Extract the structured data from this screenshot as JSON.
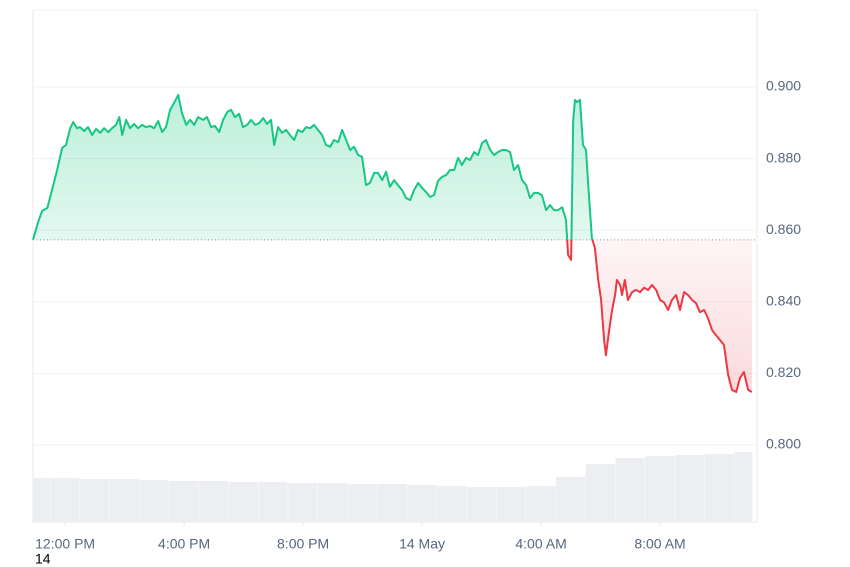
{
  "chart_data": {
    "type": "line",
    "x": [
      -1.08,
      -0.91,
      -0.77,
      -0.6,
      -0.44,
      -0.27,
      -0.1,
      0.03,
      0.17,
      0.27,
      0.4,
      0.5,
      0.64,
      0.77,
      0.91,
      1.04,
      1.18,
      1.31,
      1.45,
      1.58,
      1.71,
      1.82,
      1.92,
      2.05,
      2.18,
      2.32,
      2.45,
      2.59,
      2.72,
      2.86,
      2.99,
      3.13,
      3.26,
      3.39,
      3.53,
      3.66,
      3.8,
      3.93,
      4.07,
      4.2,
      4.34,
      4.47,
      4.64,
      4.77,
      4.91,
      5.04,
      5.18,
      5.31,
      5.45,
      5.58,
      5.71,
      5.85,
      5.98,
      6.12,
      6.25,
      6.39,
      6.52,
      6.66,
      6.79,
      6.92,
      7.03,
      7.16,
      7.29,
      7.43,
      7.56,
      7.7,
      7.83,
      7.97,
      8.1,
      8.24,
      8.37,
      8.5,
      8.64,
      8.77,
      8.91,
      9.04,
      9.18,
      9.31,
      9.45,
      9.58,
      9.71,
      9.85,
      9.98,
      10.12,
      10.25,
      10.39,
      10.52,
      10.66,
      10.79,
      10.92,
      11.06,
      11.19,
      11.33,
      11.46,
      11.6,
      11.73,
      11.87,
      12.0,
      12.13,
      12.27,
      12.4,
      12.54,
      12.67,
      12.81,
      12.94,
      13.08,
      13.21,
      13.34,
      13.48,
      13.61,
      13.75,
      13.88,
      14.02,
      14.15,
      14.29,
      14.42,
      14.55,
      14.69,
      14.82,
      14.96,
      15.09,
      15.23,
      15.36,
      15.5,
      15.63,
      15.76,
      15.9,
      16.03,
      16.17,
      16.3,
      16.44,
      16.57,
      16.71,
      16.84,
      16.91,
      17.01,
      17.08,
      17.14,
      17.21,
      17.31,
      17.41,
      17.51,
      17.61,
      17.71,
      17.81,
      17.92,
      18.02,
      18.12,
      18.18,
      18.29,
      18.39,
      18.49,
      18.55,
      18.66,
      18.72,
      18.82,
      18.92,
      19.06,
      19.19,
      19.33,
      19.46,
      19.6,
      19.73,
      19.87,
      20.0,
      20.13,
      20.27,
      20.4,
      20.54,
      20.67,
      20.81,
      20.94,
      21.08,
      21.21,
      21.34,
      21.48,
      21.61,
      21.75,
      21.88,
      22.02,
      22.15,
      22.29,
      22.42,
      22.56,
      22.69,
      22.82,
      22.96,
      23.09
    ],
    "values": [
      0.8573,
      0.8623,
      0.8654,
      0.8662,
      0.8712,
      0.8768,
      0.883,
      0.8838,
      0.8885,
      0.8902,
      0.8885,
      0.8888,
      0.8877,
      0.8888,
      0.8866,
      0.8883,
      0.8872,
      0.8885,
      0.8874,
      0.8885,
      0.8894,
      0.8916,
      0.8866,
      0.8908,
      0.8885,
      0.8897,
      0.8885,
      0.8894,
      0.8888,
      0.8891,
      0.8885,
      0.8905,
      0.8874,
      0.8888,
      0.8936,
      0.8955,
      0.8978,
      0.8927,
      0.8894,
      0.8908,
      0.8894,
      0.8916,
      0.8908,
      0.8916,
      0.8888,
      0.8891,
      0.8874,
      0.8908,
      0.893,
      0.8936,
      0.8916,
      0.8925,
      0.8888,
      0.8894,
      0.8908,
      0.8894,
      0.8899,
      0.8913,
      0.8897,
      0.8908,
      0.8838,
      0.8888,
      0.8872,
      0.888,
      0.8866,
      0.8852,
      0.888,
      0.8874,
      0.8888,
      0.8885,
      0.8894,
      0.888,
      0.8866,
      0.8838,
      0.8833,
      0.8852,
      0.8846,
      0.888,
      0.8852,
      0.8824,
      0.8833,
      0.881,
      0.8805,
      0.8726,
      0.8732,
      0.876,
      0.876,
      0.874,
      0.8763,
      0.8721,
      0.874,
      0.8726,
      0.8712,
      0.869,
      0.8684,
      0.8712,
      0.8732,
      0.8718,
      0.8707,
      0.8693,
      0.8698,
      0.8738,
      0.8749,
      0.8754,
      0.8768,
      0.8768,
      0.8802,
      0.8782,
      0.8802,
      0.8796,
      0.8818,
      0.881,
      0.8844,
      0.8852,
      0.8824,
      0.881,
      0.8818,
      0.8824,
      0.8824,
      0.8818,
      0.8768,
      0.8782,
      0.874,
      0.8726,
      0.869,
      0.8704,
      0.8704,
      0.8698,
      0.8656,
      0.867,
      0.8656,
      0.8656,
      0.8664,
      0.8629,
      0.8531,
      0.8517,
      0.8908,
      0.8964,
      0.8958,
      0.8964,
      0.8838,
      0.8824,
      0.8698,
      0.8578,
      0.855,
      0.8461,
      0.8405,
      0.8293,
      0.8251,
      0.8321,
      0.8377,
      0.8419,
      0.8461,
      0.8447,
      0.8419,
      0.8461,
      0.8405,
      0.8427,
      0.8433,
      0.8427,
      0.8439,
      0.8433,
      0.8447,
      0.8433,
      0.8405,
      0.8399,
      0.8377,
      0.8405,
      0.8419,
      0.8377,
      0.8427,
      0.8419,
      0.8405,
      0.8396,
      0.8371,
      0.8377,
      0.8355,
      0.8321,
      0.8307,
      0.8293,
      0.8279,
      0.8196,
      0.8154,
      0.8148,
      0.8187,
      0.8204,
      0.8154,
      0.8148
    ],
    "baseline": 0.8573,
    "up_color": "#16c784",
    "down_color": "#ea3943",
    "volume_color": "#eceef2",
    "volume": {
      "x": [
        -1,
        0,
        1,
        2,
        3,
        4,
        5,
        6,
        7,
        8,
        9,
        10,
        11,
        12,
        13,
        14,
        15,
        16,
        17,
        18,
        19,
        20,
        21,
        22,
        23
      ],
      "values": [
        44,
        44,
        43,
        43,
        42,
        41,
        41,
        40,
        40,
        39,
        39,
        38,
        38,
        37,
        36,
        35,
        35,
        36,
        45,
        58,
        64,
        66,
        67,
        68,
        70
      ]
    },
    "xlim": [
      -1.08,
      23.26
    ],
    "xticks": [
      {
        "value": 0,
        "label": "12:00 PM"
      },
      {
        "value": 4,
        "label": "4:00 PM"
      },
      {
        "value": 8,
        "label": "8:00 PM"
      },
      {
        "value": 12,
        "label": "14 May"
      },
      {
        "value": 16,
        "label": "4:00 AM"
      },
      {
        "value": 20,
        "label": "8:00 AM"
      }
    ],
    "ylim": [
      0.7785,
      0.9215
    ],
    "yticks": [
      {
        "value": 0.8,
        "label": "0.800"
      },
      {
        "value": 0.82,
        "label": "0.820"
      },
      {
        "value": 0.84,
        "label": "0.840"
      },
      {
        "value": 0.86,
        "label": "0.860"
      },
      {
        "value": 0.88,
        "label": "0.880"
      },
      {
        "value": 0.9,
        "label": "0.900"
      }
    ],
    "grid": true,
    "corner_label": "14"
  }
}
